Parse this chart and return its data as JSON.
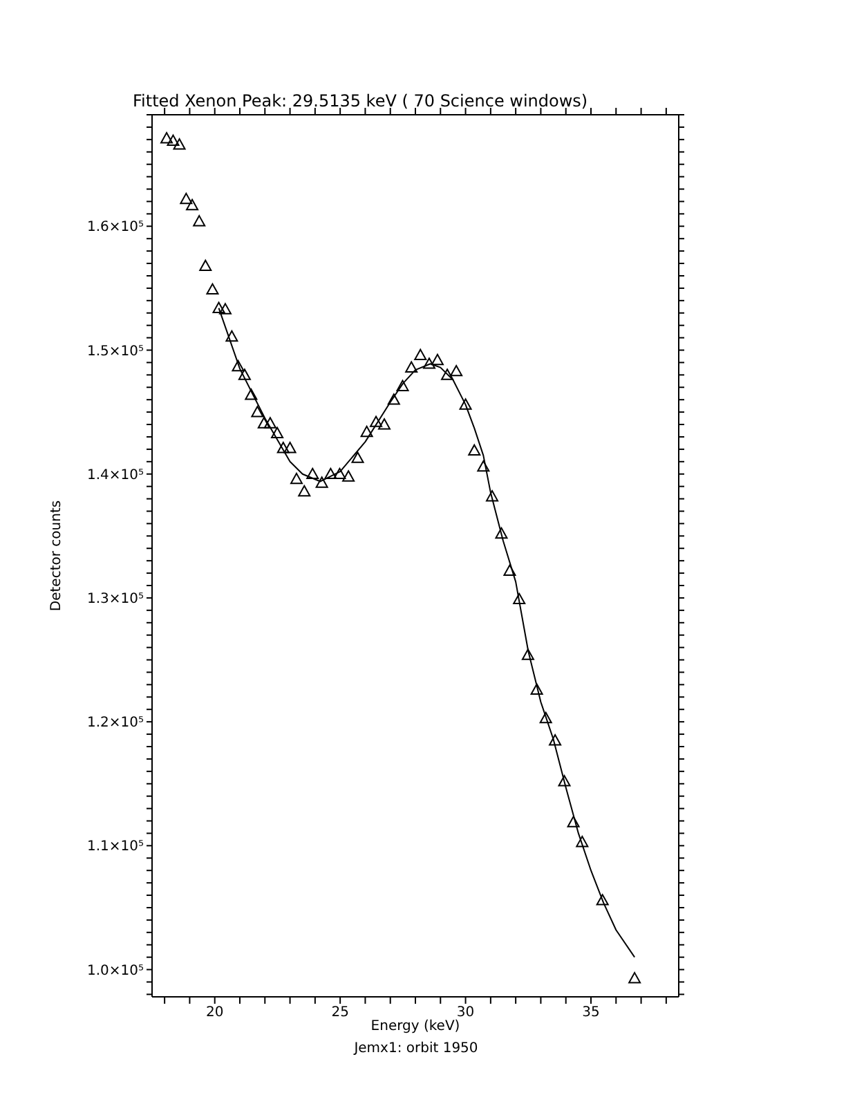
{
  "chart_data": {
    "type": "scatter",
    "title": "Fitted Xenon Peak: 29.5135 keV ( 70 Science windows)",
    "xlabel": "Energy (keV)",
    "ylabel": "Detector counts",
    "annotations": [
      "Jemx1: orbit 1950"
    ],
    "xlim": [
      17.5,
      38.5
    ],
    "xticks": [
      {
        "value": 18,
        "label": null
      },
      {
        "value": 19,
        "label": null
      },
      20,
      {
        "value": 21,
        "label": null
      },
      {
        "value": 22,
        "label": null
      },
      {
        "value": 23,
        "label": null
      },
      {
        "value": 24,
        "label": null
      },
      25,
      {
        "value": 26,
        "label": null
      },
      {
        "value": 27,
        "label": null
      },
      {
        "value": 28,
        "label": null
      },
      {
        "value": 29,
        "label": null
      },
      30,
      {
        "value": 31,
        "label": null
      },
      {
        "value": 32,
        "label": null
      },
      {
        "value": 33,
        "label": null
      },
      {
        "value": 34,
        "label": null
      },
      35,
      {
        "value": 36,
        "label": null
      },
      {
        "value": 37,
        "label": null
      },
      {
        "value": 38,
        "label": null
      }
    ],
    "ylim": [
      97800,
      169000
    ],
    "yticks": [
      {
        "value": 98000,
        "label": null
      },
      {
        "value": 99000,
        "label": null
      },
      {
        "value": 100000,
        "label": "1.0×10⁵"
      },
      {
        "value": 101000,
        "label": null
      },
      {
        "value": 102000,
        "label": null
      },
      {
        "value": 103000,
        "label": null
      },
      {
        "value": 104000,
        "label": null
      },
      {
        "value": 105000,
        "label": null
      },
      {
        "value": 106000,
        "label": null
      },
      {
        "value": 107000,
        "label": null
      },
      {
        "value": 108000,
        "label": null
      },
      {
        "value": 109000,
        "label": null
      },
      {
        "value": 110000,
        "label": "1.1×10⁵"
      },
      {
        "value": 111000,
        "label": null
      },
      {
        "value": 112000,
        "label": null
      },
      {
        "value": 113000,
        "label": null
      },
      {
        "value": 114000,
        "label": null
      },
      {
        "value": 115000,
        "label": null
      },
      {
        "value": 116000,
        "label": null
      },
      {
        "value": 117000,
        "label": null
      },
      {
        "value": 118000,
        "label": null
      },
      {
        "value": 119000,
        "label": null
      },
      {
        "value": 120000,
        "label": "1.2×10⁵"
      },
      {
        "value": 121000,
        "label": null
      },
      {
        "value": 122000,
        "label": null
      },
      {
        "value": 123000,
        "label": null
      },
      {
        "value": 124000,
        "label": null
      },
      {
        "value": 125000,
        "label": null
      },
      {
        "value": 126000,
        "label": null
      },
      {
        "value": 127000,
        "label": null
      },
      {
        "value": 128000,
        "label": null
      },
      {
        "value": 129000,
        "label": null
      },
      {
        "value": 130000,
        "label": "1.3×10⁵"
      },
      {
        "value": 131000,
        "label": null
      },
      {
        "value": 132000,
        "label": null
      },
      {
        "value": 133000,
        "label": null
      },
      {
        "value": 134000,
        "label": null
      },
      {
        "value": 135000,
        "label": null
      },
      {
        "value": 136000,
        "label": null
      },
      {
        "value": 137000,
        "label": null
      },
      {
        "value": 138000,
        "label": null
      },
      {
        "value": 139000,
        "label": null
      },
      {
        "value": 140000,
        "label": "1.4×10⁵"
      },
      {
        "value": 141000,
        "label": null
      },
      {
        "value": 142000,
        "label": null
      },
      {
        "value": 143000,
        "label": null
      },
      {
        "value": 144000,
        "label": null
      },
      {
        "value": 145000,
        "label": null
      },
      {
        "value": 146000,
        "label": null
      },
      {
        "value": 147000,
        "label": null
      },
      {
        "value": 148000,
        "label": null
      },
      {
        "value": 149000,
        "label": null
      },
      {
        "value": 150000,
        "label": "1.5×10⁵"
      },
      {
        "value": 151000,
        "label": null
      },
      {
        "value": 152000,
        "label": null
      },
      {
        "value": 153000,
        "label": null
      },
      {
        "value": 154000,
        "label": null
      },
      {
        "value": 155000,
        "label": null
      },
      {
        "value": 156000,
        "label": null
      },
      {
        "value": 157000,
        "label": null
      },
      {
        "value": 158000,
        "label": null
      },
      {
        "value": 159000,
        "label": null
      },
      {
        "value": 160000,
        "label": "1.6×10⁵"
      },
      {
        "value": 161000,
        "label": null
      },
      {
        "value": 162000,
        "label": null
      },
      {
        "value": 163000,
        "label": null
      },
      {
        "value": 164000,
        "label": null
      },
      {
        "value": 165000,
        "label": null
      },
      {
        "value": 166000,
        "label": null
      },
      {
        "value": 167000,
        "label": null
      },
      {
        "value": 168000,
        "label": null
      },
      {
        "value": 169000,
        "label": null
      }
    ],
    "series": [
      {
        "color": "#000000",
        "marker": "triangle",
        "x": [
          18.08,
          18.34,
          18.59,
          18.86,
          19.1,
          19.38,
          19.63,
          19.91,
          20.16,
          20.42,
          20.68,
          20.93,
          21.19,
          21.45,
          21.7,
          21.96,
          22.21,
          22.49,
          22.73,
          23.0,
          23.26,
          23.57,
          23.9,
          24.27,
          24.62,
          24.98,
          25.33,
          25.7,
          26.06,
          26.43,
          26.76,
          27.14,
          27.49,
          27.84,
          28.2,
          28.55,
          28.88,
          29.27,
          29.63,
          30.0,
          30.35,
          30.71,
          31.06,
          31.43,
          31.76,
          32.14,
          32.49,
          32.84,
          33.2,
          33.57,
          33.94,
          34.3,
          34.65,
          35.46,
          36.74
        ],
        "values": [
          167100,
          166900,
          166600,
          162200,
          161700,
          160400,
          156800,
          154900,
          153400,
          153300,
          151100,
          148700,
          148000,
          146400,
          145000,
          144100,
          144100,
          143300,
          142100,
          142100,
          139600,
          138600,
          140000,
          139300,
          140000,
          140000,
          139800,
          141300,
          143400,
          144200,
          144000,
          146000,
          147100,
          148600,
          149600,
          148900,
          149200,
          148000,
          148300,
          145600,
          141900,
          140600,
          138200,
          135200,
          132200,
          129900,
          125400,
          122600,
          120300,
          118500,
          115200,
          111900,
          110300,
          105600,
          99300
        ]
      },
      {
        "type": "line",
        "color": "#000000",
        "marker": "none",
        "x": [
          20.16,
          21,
          22,
          23,
          23.5,
          24.21,
          25,
          26,
          27,
          27.5,
          28,
          28.6,
          29,
          29.5,
          30,
          30.35,
          30.71,
          31,
          31.5,
          32,
          32.5,
          33,
          33.5,
          34,
          34.5,
          35,
          35.5,
          36,
          36.74
        ],
        "values": [
          153400,
          148500,
          144500,
          141000,
          140000,
          139400,
          140200,
          142600,
          145800,
          147300,
          148400,
          148900,
          148600,
          147600,
          145600,
          143700,
          141500,
          138500,
          134600,
          131300,
          125700,
          121600,
          118600,
          114700,
          111000,
          108000,
          105400,
          103200,
          101000
        ]
      }
    ]
  }
}
